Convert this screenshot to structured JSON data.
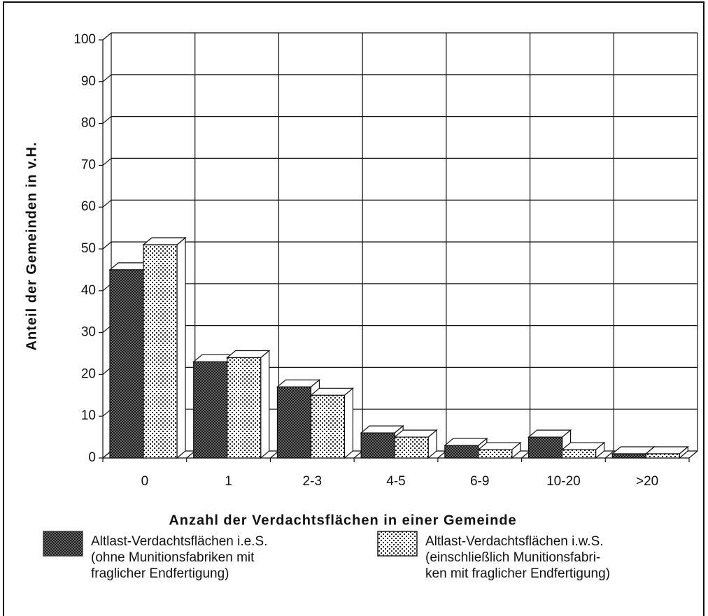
{
  "chart_data": {
    "type": "bar3d",
    "ylabel": "Anteil der Gemeinden in v.H.",
    "xlabel": "Anzahl der Verdachtsflächen in einer Gemeinde",
    "categories": [
      "0",
      "1",
      "2-3",
      "4-5",
      "6-9",
      "10-20",
      ">20"
    ],
    "series": [
      {
        "name": "Altlast-Verdachtsflächen i.e.S.\n(ohne  Munitionsfabriken mit\nfraglicher Endfertigung)",
        "color": "#3a3a3a",
        "pattern": "crosshatch",
        "values": [
          45,
          23,
          17,
          6,
          3,
          5,
          1
        ]
      },
      {
        "name": "Altlast-Verdachtsflächen i.w.S.\n(einschließlich Munitionsfabri-\nken mit fraglicher Endfertigung)",
        "color": "#222222",
        "pattern": "dots",
        "values": [
          51,
          24,
          15,
          5,
          2,
          2,
          1
        ]
      }
    ],
    "ylim": [
      0,
      100
    ],
    "yticks": [
      0,
      10,
      20,
      30,
      40,
      50,
      60,
      70,
      80,
      90,
      100
    ],
    "grid": true
  }
}
